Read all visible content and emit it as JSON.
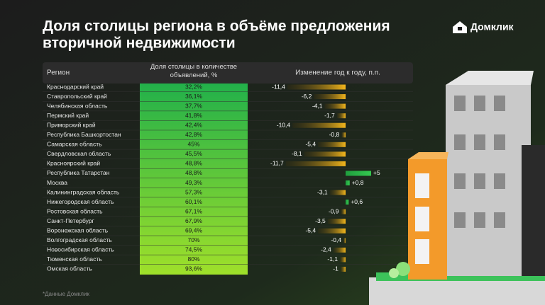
{
  "header": {
    "title_lines": [
      "Доля столицы региона в объёме предложения",
      "вторичной недвижимости"
    ],
    "logo": "Домклик"
  },
  "table": {
    "columns": [
      "Регион",
      "Доля столицы в количестве объявлений, %",
      "Изменение год к году, п.п."
    ],
    "rows": [
      {
        "region": "Краснодарский край",
        "share": "32,2%",
        "change": {
          "value": -11.4,
          "label": "-11,4"
        }
      },
      {
        "region": "Ставропольский край",
        "share": "36,1%",
        "change": {
          "value": -6.2,
          "label": "-6,2"
        }
      },
      {
        "region": "Челябинская область",
        "share": "37,7%",
        "change": {
          "value": -4.1,
          "label": "-4,1"
        }
      },
      {
        "region": "Пермский край",
        "share": "41,8%",
        "change": {
          "value": -1.7,
          "label": "-1,7"
        }
      },
      {
        "region": "Приморский край",
        "share": "42,4%",
        "change": {
          "value": -10.4,
          "label": "-10,4"
        }
      },
      {
        "region": "Республика Башкортостан",
        "share": "42,8%",
        "change": {
          "value": -0.8,
          "label": "-0,8"
        }
      },
      {
        "region": "Самарская область",
        "share": "45%",
        "change": {
          "value": -5.4,
          "label": "-5,4"
        }
      },
      {
        "region": "Свердловская область",
        "share": "45,5%",
        "change": {
          "value": -8.1,
          "label": "-8,1"
        }
      },
      {
        "region": "Красноярский край",
        "share": "48,8%",
        "change": {
          "value": -11.7,
          "label": "-11,7"
        }
      },
      {
        "region": "Республика Татарстан",
        "share": "48,8%",
        "change": {
          "value": 5,
          "label": "+5"
        }
      },
      {
        "region": "Москва",
        "share": "49,3%",
        "change": {
          "value": 0.8,
          "label": "+0,8"
        }
      },
      {
        "region": "Калининградская область",
        "share": "57,3%",
        "change": {
          "value": -3.1,
          "label": "-3,1"
        }
      },
      {
        "region": "Нижегородская область",
        "share": "60,1%",
        "change": {
          "value": 0.6,
          "label": "+0,6"
        }
      },
      {
        "region": "Ростовская область",
        "share": "67,1%",
        "change": {
          "value": -0.9,
          "label": "-0,9"
        }
      },
      {
        "region": "Санкт-Петербург",
        "share": "67,9%",
        "change": {
          "value": -3.5,
          "label": "-3,5"
        }
      },
      {
        "region": "Воронежская область",
        "share": "69,4%",
        "change": {
          "value": -5.4,
          "label": "-5,4"
        }
      },
      {
        "region": "Волгоградская область",
        "share": "70%",
        "change": {
          "value": -0.4,
          "label": "-0,4"
        }
      },
      {
        "region": "Новосибирская область",
        "share": "74,5%",
        "change": {
          "value": -2.4,
          "label": "-2,4"
        }
      },
      {
        "region": "Тюменская область",
        "share": "80%",
        "change": {
          "value": -1.1,
          "label": "-1,1"
        }
      },
      {
        "region": "Омская область",
        "share": "93,6%",
        "change": {
          "value": -1,
          "label": "-1"
        }
      }
    ]
  },
  "footnote": "*Данные Домклик"
}
